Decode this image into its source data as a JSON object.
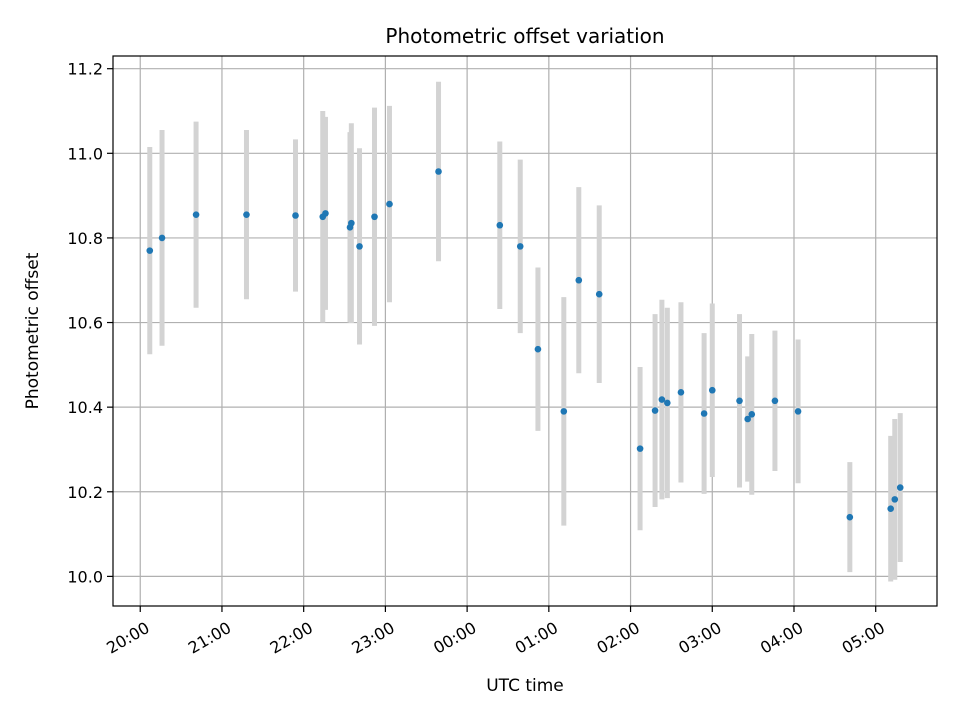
{
  "chart_data": {
    "type": "scatter",
    "title": "Photometric offset variation",
    "xlabel": "UTC time",
    "ylabel": "Photometric offset",
    "xlim": [
      "19:40",
      "05:45"
    ],
    "ylim": [
      9.93,
      11.23
    ],
    "grid": true,
    "x_ticks": [
      "20:00",
      "21:00",
      "22:00",
      "23:00",
      "00:00",
      "01:00",
      "02:00",
      "03:00",
      "04:00",
      "05:00"
    ],
    "y_ticks": [
      "10.0",
      "10.2",
      "10.4",
      "10.6",
      "10.8",
      "11.0",
      "11.2"
    ],
    "colors": {
      "points": "#1f77b4",
      "errorbars": "#d3d3d3",
      "grid": "#b0b0b0"
    },
    "series": [
      {
        "points": [
          {
            "x": "20:07",
            "y": 10.77,
            "yerr": 0.245
          },
          {
            "x": "20:16",
            "y": 10.8,
            "yerr": 0.255
          },
          {
            "x": "20:41",
            "y": 10.855,
            "yerr": 0.22
          },
          {
            "x": "21:18",
            "y": 10.855,
            "yerr": 0.2
          },
          {
            "x": "21:54",
            "y": 10.853,
            "yerr": 0.18
          },
          {
            "x": "22:14",
            "y": 10.85,
            "yerr": 0.25
          },
          {
            "x": "22:16",
            "y": 10.858,
            "yerr": 0.228
          },
          {
            "x": "22:34",
            "y": 10.825,
            "yerr": 0.225
          },
          {
            "x": "22:35",
            "y": 10.835,
            "yerr": 0.236
          },
          {
            "x": "22:41",
            "y": 10.78,
            "yerr": 0.232
          },
          {
            "x": "22:52",
            "y": 10.85,
            "yerr": 0.258
          },
          {
            "x": "23:03",
            "y": 10.88,
            "yerr": 0.232
          },
          {
            "x": "23:39",
            "y": 10.957,
            "yerr": 0.212
          },
          {
            "x": "00:24",
            "y": 10.83,
            "yerr": 0.198
          },
          {
            "x": "00:39",
            "y": 10.78,
            "yerr": 0.205
          },
          {
            "x": "00:52",
            "y": 10.537,
            "yerr": 0.193
          },
          {
            "x": "01:11",
            "y": 10.39,
            "yerr": 0.27
          },
          {
            "x": "01:22",
            "y": 10.7,
            "yerr": 0.22
          },
          {
            "x": "01:37",
            "y": 10.667,
            "yerr": 0.21
          },
          {
            "x": "02:07",
            "y": 10.302,
            "yerr": 0.193
          },
          {
            "x": "02:18",
            "y": 10.392,
            "yerr": 0.228
          },
          {
            "x": "02:23",
            "y": 10.418,
            "yerr": 0.236
          },
          {
            "x": "02:27",
            "y": 10.41,
            "yerr": 0.225
          },
          {
            "x": "02:37",
            "y": 10.435,
            "yerr": 0.213
          },
          {
            "x": "02:54",
            "y": 10.385,
            "yerr": 0.19
          },
          {
            "x": "03:00",
            "y": 10.44,
            "yerr": 0.205
          },
          {
            "x": "03:20",
            "y": 10.415,
            "yerr": 0.205
          },
          {
            "x": "03:26",
            "y": 10.372,
            "yerr": 0.148
          },
          {
            "x": "03:29",
            "y": 10.383,
            "yerr": 0.19
          },
          {
            "x": "03:46",
            "y": 10.415,
            "yerr": 0.166
          },
          {
            "x": "04:03",
            "y": 10.39,
            "yerr": 0.17
          },
          {
            "x": "04:41",
            "y": 10.14,
            "yerr": 0.13
          },
          {
            "x": "05:11",
            "y": 10.16,
            "yerr": 0.172
          },
          {
            "x": "05:14",
            "y": 10.182,
            "yerr": 0.19
          },
          {
            "x": "05:18",
            "y": 10.21,
            "yerr": 0.176
          }
        ]
      }
    ]
  }
}
